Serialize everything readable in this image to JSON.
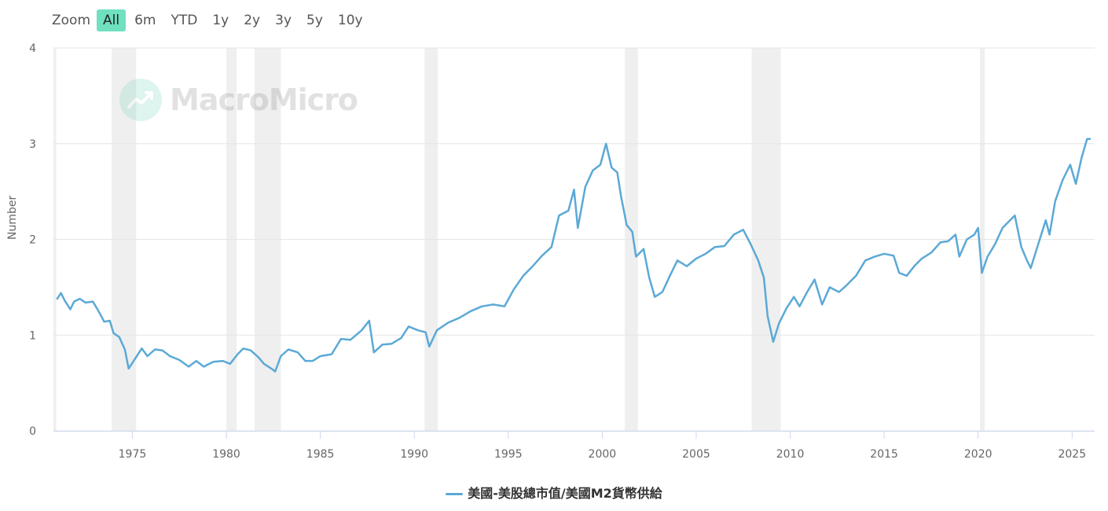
{
  "zoom": {
    "label": "Zoom",
    "buttons": [
      "All",
      "6m",
      "YTD",
      "1y",
      "2y",
      "3y",
      "5y",
      "10y"
    ],
    "active": "All"
  },
  "watermark": {
    "text": "MacroMicro"
  },
  "colors": {
    "series": "#5ba9d6",
    "recession": "#efefef",
    "grid": "#e6e6e6",
    "active_zoom": "#6fe0c0"
  },
  "chart_data": {
    "type": "line",
    "title": "",
    "xlabel": "",
    "ylabel": "Number",
    "xlim": [
      1970.8,
      2026.2
    ],
    "ylim": [
      0,
      4
    ],
    "yticks": [
      0,
      1,
      2,
      3,
      4
    ],
    "xticks": [
      1975,
      1980,
      1985,
      1990,
      1995,
      2000,
      2005,
      2010,
      2015,
      2020,
      2025
    ],
    "grid": true,
    "legend_position": "bottom-center",
    "recessions": [
      [
        1970.8,
        1970.95
      ],
      [
        1973.9,
        1975.2
      ],
      [
        1980.0,
        1980.55
      ],
      [
        1981.5,
        1982.9
      ],
      [
        1990.55,
        1991.25
      ],
      [
        2001.2,
        2001.9
      ],
      [
        2007.95,
        2009.5
      ],
      [
        2020.1,
        2020.35
      ]
    ],
    "series": [
      {
        "name": "美國-美股總市值/美國M2貨幣供給",
        "points": [
          [
            1971.0,
            1.38
          ],
          [
            1971.2,
            1.44
          ],
          [
            1971.4,
            1.36
          ],
          [
            1971.7,
            1.27
          ],
          [
            1971.9,
            1.35
          ],
          [
            1972.2,
            1.38
          ],
          [
            1972.5,
            1.34
          ],
          [
            1972.9,
            1.35
          ],
          [
            1973.2,
            1.25
          ],
          [
            1973.5,
            1.14
          ],
          [
            1973.8,
            1.15
          ],
          [
            1974.0,
            1.02
          ],
          [
            1974.3,
            0.98
          ],
          [
            1974.6,
            0.85
          ],
          [
            1974.8,
            0.65
          ],
          [
            1975.0,
            0.71
          ],
          [
            1975.3,
            0.8
          ],
          [
            1975.5,
            0.86
          ],
          [
            1975.8,
            0.78
          ],
          [
            1976.2,
            0.85
          ],
          [
            1976.6,
            0.84
          ],
          [
            1977.0,
            0.78
          ],
          [
            1977.5,
            0.74
          ],
          [
            1978.0,
            0.67
          ],
          [
            1978.4,
            0.73
          ],
          [
            1978.8,
            0.67
          ],
          [
            1979.3,
            0.72
          ],
          [
            1979.8,
            0.73
          ],
          [
            1980.2,
            0.7
          ],
          [
            1980.6,
            0.8
          ],
          [
            1980.9,
            0.86
          ],
          [
            1981.3,
            0.84
          ],
          [
            1981.7,
            0.77
          ],
          [
            1982.0,
            0.7
          ],
          [
            1982.4,
            0.65
          ],
          [
            1982.6,
            0.62
          ],
          [
            1982.9,
            0.78
          ],
          [
            1983.3,
            0.85
          ],
          [
            1983.8,
            0.82
          ],
          [
            1984.2,
            0.73
          ],
          [
            1984.6,
            0.73
          ],
          [
            1985.0,
            0.78
          ],
          [
            1985.6,
            0.8
          ],
          [
            1986.1,
            0.96
          ],
          [
            1986.6,
            0.95
          ],
          [
            1987.2,
            1.05
          ],
          [
            1987.6,
            1.15
          ],
          [
            1987.85,
            0.82
          ],
          [
            1988.3,
            0.9
          ],
          [
            1988.8,
            0.91
          ],
          [
            1989.3,
            0.97
          ],
          [
            1989.7,
            1.09
          ],
          [
            1990.2,
            1.05
          ],
          [
            1990.6,
            1.03
          ],
          [
            1990.8,
            0.88
          ],
          [
            1991.2,
            1.05
          ],
          [
            1991.8,
            1.13
          ],
          [
            1992.4,
            1.18
          ],
          [
            1993.0,
            1.25
          ],
          [
            1993.6,
            1.3
          ],
          [
            1994.2,
            1.32
          ],
          [
            1994.8,
            1.3
          ],
          [
            1995.3,
            1.48
          ],
          [
            1995.8,
            1.62
          ],
          [
            1996.3,
            1.72
          ],
          [
            1996.8,
            1.83
          ],
          [
            1997.3,
            1.92
          ],
          [
            1997.7,
            2.25
          ],
          [
            1998.2,
            2.3
          ],
          [
            1998.5,
            2.52
          ],
          [
            1998.7,
            2.12
          ],
          [
            1999.1,
            2.55
          ],
          [
            1999.5,
            2.72
          ],
          [
            1999.9,
            2.78
          ],
          [
            2000.2,
            3.0
          ],
          [
            2000.5,
            2.75
          ],
          [
            2000.8,
            2.7
          ],
          [
            2001.0,
            2.45
          ],
          [
            2001.3,
            2.15
          ],
          [
            2001.6,
            2.08
          ],
          [
            2001.8,
            1.82
          ],
          [
            2002.2,
            1.9
          ],
          [
            2002.5,
            1.6
          ],
          [
            2002.8,
            1.4
          ],
          [
            2003.2,
            1.45
          ],
          [
            2003.6,
            1.62
          ],
          [
            2004.0,
            1.78
          ],
          [
            2004.5,
            1.72
          ],
          [
            2005.0,
            1.8
          ],
          [
            2005.5,
            1.85
          ],
          [
            2006.0,
            1.92
          ],
          [
            2006.5,
            1.93
          ],
          [
            2007.0,
            2.05
          ],
          [
            2007.5,
            2.1
          ],
          [
            2007.9,
            1.95
          ],
          [
            2008.3,
            1.78
          ],
          [
            2008.6,
            1.6
          ],
          [
            2008.8,
            1.2
          ],
          [
            2009.1,
            0.93
          ],
          [
            2009.4,
            1.12
          ],
          [
            2009.8,
            1.28
          ],
          [
            2010.2,
            1.4
          ],
          [
            2010.5,
            1.3
          ],
          [
            2010.9,
            1.45
          ],
          [
            2011.3,
            1.58
          ],
          [
            2011.7,
            1.32
          ],
          [
            2012.1,
            1.5
          ],
          [
            2012.6,
            1.45
          ],
          [
            2013.0,
            1.52
          ],
          [
            2013.5,
            1.62
          ],
          [
            2014.0,
            1.78
          ],
          [
            2014.5,
            1.82
          ],
          [
            2015.0,
            1.85
          ],
          [
            2015.5,
            1.83
          ],
          [
            2015.8,
            1.65
          ],
          [
            2016.2,
            1.62
          ],
          [
            2016.6,
            1.72
          ],
          [
            2017.0,
            1.8
          ],
          [
            2017.5,
            1.86
          ],
          [
            2018.0,
            1.97
          ],
          [
            2018.4,
            1.98
          ],
          [
            2018.8,
            2.05
          ],
          [
            2019.0,
            1.82
          ],
          [
            2019.4,
            2.0
          ],
          [
            2019.8,
            2.05
          ],
          [
            2020.0,
            2.12
          ],
          [
            2020.2,
            1.65
          ],
          [
            2020.5,
            1.82
          ],
          [
            2020.9,
            1.95
          ],
          [
            2021.3,
            2.12
          ],
          [
            2021.7,
            2.2
          ],
          [
            2021.95,
            2.25
          ],
          [
            2022.3,
            1.92
          ],
          [
            2022.6,
            1.78
          ],
          [
            2022.8,
            1.7
          ],
          [
            2023.2,
            1.95
          ],
          [
            2023.6,
            2.2
          ],
          [
            2023.8,
            2.05
          ],
          [
            2024.1,
            2.4
          ],
          [
            2024.5,
            2.62
          ],
          [
            2024.9,
            2.78
          ],
          [
            2025.2,
            2.58
          ],
          [
            2025.5,
            2.85
          ],
          [
            2025.8,
            3.05
          ],
          [
            2025.95,
            3.05
          ]
        ]
      }
    ]
  }
}
